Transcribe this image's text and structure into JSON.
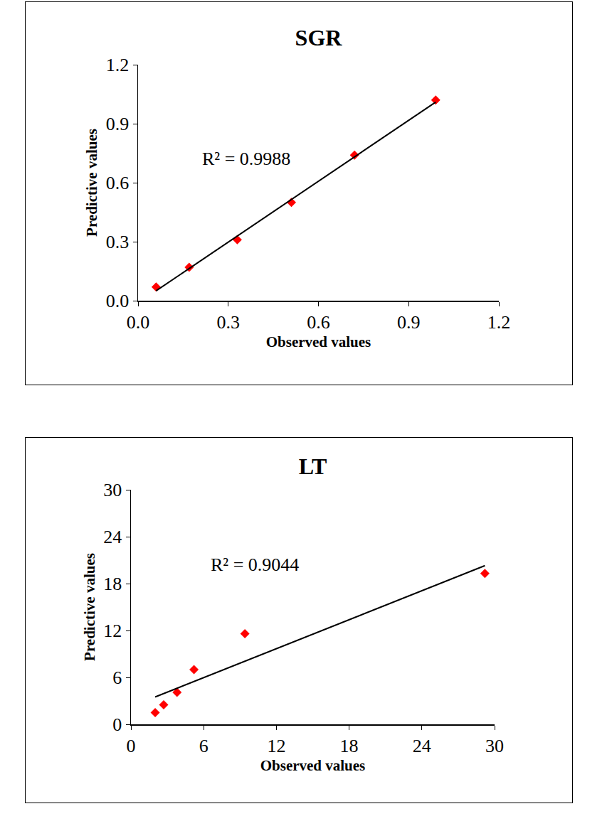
{
  "chart_data": [
    {
      "type": "scatter",
      "title": "SGR",
      "x_label": "Observed values",
      "y_label": "Predictive values",
      "xlim": [
        0,
        1.2
      ],
      "xticks": [
        {
          "value": 0,
          "label": "0.0"
        },
        0.3,
        0.6,
        0.9,
        1.2
      ],
      "ylim": [
        0,
        1.2
      ],
      "yticks": [
        {
          "value": 0,
          "label": "0.0"
        },
        0.3,
        0.6,
        0.9,
        1.2
      ],
      "grid": false,
      "series": [
        {
          "type": "scatter",
          "marker": "diamond",
          "color": "#ff0000",
          "x": [
            0.06,
            0.17,
            0.33,
            0.51,
            0.72,
            0.99
          ],
          "values": [
            0.07,
            0.17,
            0.31,
            0.5,
            0.74,
            1.02
          ]
        },
        {
          "type": "line",
          "line_style": "solid",
          "color": "#000000",
          "x": [
            0.06,
            0.99
          ],
          "values": [
            0.05,
            1.01
          ]
        }
      ],
      "annotations": [
        {
          "text": "R² = 0.9988",
          "x": 0.36,
          "y": 0.72
        }
      ]
    },
    {
      "type": "scatter",
      "title": "LT",
      "x_label": "Observed values",
      "y_label": "Predictive values",
      "xlim": [
        0,
        30
      ],
      "xticks": [
        0,
        6,
        12,
        18,
        24,
        30
      ],
      "ylim": [
        0,
        30
      ],
      "yticks": [
        0,
        6,
        12,
        18,
        24,
        30
      ],
      "grid": false,
      "series": [
        {
          "type": "scatter",
          "marker": "diamond",
          "color": "#ff0000",
          "x": [
            2.0,
            2.7,
            3.8,
            5.2,
            9.4,
            29.2
          ],
          "values": [
            1.5,
            2.5,
            4.1,
            7.0,
            11.6,
            19.3
          ]
        },
        {
          "type": "line",
          "line_style": "solid",
          "color": "#000000",
          "x": [
            2.0,
            29.2
          ],
          "values": [
            3.5,
            20.3
          ]
        }
      ],
      "annotations": [
        {
          "text": "R² = 0.9044",
          "x": 10.2,
          "y": 20.4
        }
      ]
    }
  ]
}
